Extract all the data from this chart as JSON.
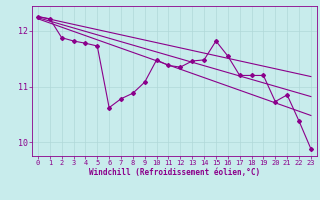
{
  "xlabel": "Windchill (Refroidissement éolien,°C)",
  "background_color": "#c8ecec",
  "line_color": "#8b008b",
  "grid_color": "#b0d8d8",
  "xlim": [
    -0.5,
    23.5
  ],
  "ylim": [
    9.75,
    12.45
  ],
  "yticks": [
    10,
    11,
    12
  ],
  "xticks": [
    0,
    1,
    2,
    3,
    4,
    5,
    6,
    7,
    8,
    9,
    10,
    11,
    12,
    13,
    14,
    15,
    16,
    17,
    18,
    19,
    20,
    21,
    22,
    23
  ],
  "main_x": [
    0,
    1,
    2,
    3,
    4,
    5,
    6,
    7,
    8,
    9,
    10,
    11,
    12,
    13,
    14,
    15,
    16,
    17,
    18,
    19,
    20,
    21,
    22,
    23
  ],
  "main_y": [
    12.26,
    12.22,
    11.88,
    11.82,
    11.78,
    11.73,
    10.62,
    10.78,
    10.88,
    11.08,
    11.48,
    11.38,
    11.35,
    11.46,
    11.48,
    11.82,
    11.55,
    11.2,
    11.2,
    11.2,
    10.73,
    10.85,
    10.38,
    9.88
  ],
  "trend1_x": [
    0,
    23
  ],
  "trend1_y": [
    12.26,
    11.18
  ],
  "trend2_x": [
    0,
    23
  ],
  "trend2_y": [
    12.24,
    10.82
  ],
  "trend3_x": [
    0,
    23
  ],
  "trend3_y": [
    12.22,
    10.48
  ],
  "marker": "D",
  "markersize": 2.0,
  "linewidth": 0.8
}
